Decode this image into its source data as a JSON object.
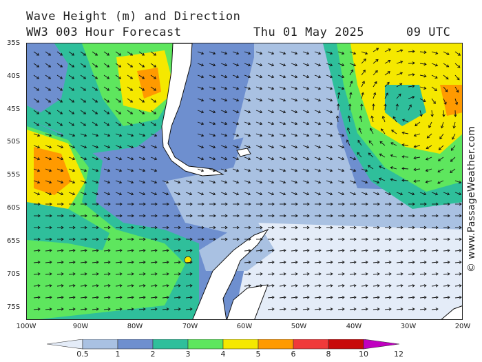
{
  "header": {
    "title_line1": "Wave Height (m) and Direction",
    "title_line2": "WW3 003 Hour Forecast",
    "date": "Thu 01 May 2025",
    "time": "09 UTC"
  },
  "credit": "© www.PassageWeather.com",
  "lat_labels": [
    "35S",
    "40S",
    "45S",
    "50S",
    "55S",
    "60S",
    "65S",
    "70S",
    "75S"
  ],
  "lon_labels": [
    "100W",
    "90W",
    "80W",
    "70W",
    "60W",
    "50W",
    "40W",
    "30W",
    "20W"
  ],
  "colorbar": {
    "colors": [
      "#e4ecf8",
      "#a9c1e2",
      "#6e8fcf",
      "#2fbf9b",
      "#5ee65e",
      "#f5e800",
      "#ff9a00",
      "#f03a3a",
      "#c80a0a",
      "#c000c0"
    ],
    "labels": [
      "0.5",
      "1",
      "2",
      "3",
      "4",
      "5",
      "6",
      "8",
      "10",
      "12"
    ]
  },
  "colors": {
    "land": "#ffffff",
    "coast": "#111111",
    "arrow": "#111111"
  }
}
